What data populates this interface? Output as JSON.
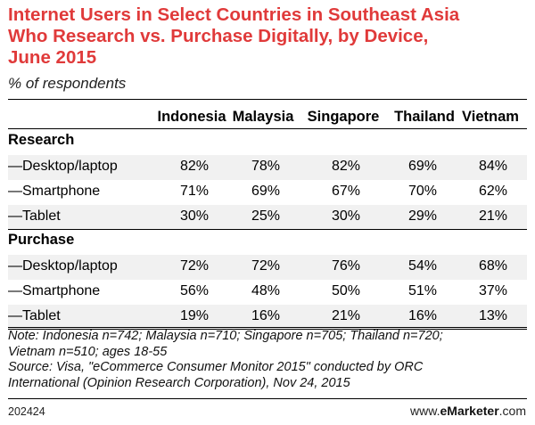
{
  "title_lines": [
    "Internet Users in Select Countries in Southeast Asia",
    "Who Research vs. Purchase Digitally, by Device,",
    "June 2015"
  ],
  "subtitle": "% of respondents",
  "columns": [
    "Indonesia",
    "Malaysia",
    "Singapore",
    "Thailand",
    "Vietnam"
  ],
  "sections": [
    {
      "name": "Research",
      "rows": [
        {
          "label": "—Desktop/laptop",
          "values": [
            "82%",
            "78%",
            "82%",
            "69%",
            "84%"
          ]
        },
        {
          "label": "—Smartphone",
          "values": [
            "71%",
            "69%",
            "67%",
            "70%",
            "62%"
          ]
        },
        {
          "label": "—Tablet",
          "values": [
            "30%",
            "25%",
            "30%",
            "29%",
            "21%"
          ]
        }
      ]
    },
    {
      "name": "Purchase",
      "rows": [
        {
          "label": "—Desktop/laptop",
          "values": [
            "72%",
            "72%",
            "76%",
            "54%",
            "68%"
          ]
        },
        {
          "label": "—Smartphone",
          "values": [
            "56%",
            "48%",
            "50%",
            "51%",
            "37%"
          ]
        },
        {
          "label": "—Tablet",
          "values": [
            "19%",
            "16%",
            "21%",
            "16%",
            "13%"
          ]
        }
      ]
    }
  ],
  "note_lines": [
    "Note: Indonesia n=742; Malaysia n=710; Singapore n=705; Thailand n=720;",
    "Vietnam n=510; ages 18-55",
    "Source: Visa, \"eCommerce Consumer Monitor 2015\" conducted by ORC",
    "International (Opinion Research Corporation), Nov 24, 2015"
  ],
  "footer_id": "202424",
  "brand_prefix": "www.",
  "brand_name": "eMarketer",
  "brand_suffix": ".com",
  "colors": {
    "title": "#e03a3a",
    "row_shade": "#f1f1f1"
  },
  "chart_data": {
    "type": "table",
    "title": "Internet Users in Select Countries in Southeast Asia Who Research vs. Purchase Digitally, by Device, June 2015",
    "subtitle": "% of respondents",
    "categories": [
      "Indonesia",
      "Malaysia",
      "Singapore",
      "Thailand",
      "Vietnam"
    ],
    "series": [
      {
        "name": "Research —Desktop/laptop",
        "values": [
          82,
          78,
          82,
          69,
          84
        ]
      },
      {
        "name": "Research —Smartphone",
        "values": [
          71,
          69,
          67,
          70,
          62
        ]
      },
      {
        "name": "Research —Tablet",
        "values": [
          30,
          25,
          30,
          29,
          21
        ]
      },
      {
        "name": "Purchase —Desktop/laptop",
        "values": [
          72,
          72,
          76,
          54,
          68
        ]
      },
      {
        "name": "Purchase —Smartphone",
        "values": [
          56,
          48,
          50,
          51,
          37
        ]
      },
      {
        "name": "Purchase —Tablet",
        "values": [
          19,
          16,
          21,
          16,
          13
        ]
      }
    ]
  }
}
